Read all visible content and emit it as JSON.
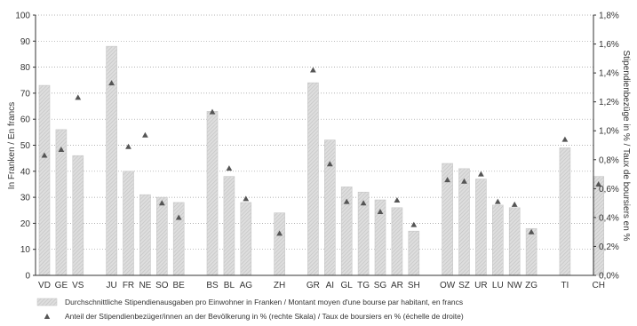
{
  "chart_data": {
    "type": "bar",
    "categories": [
      "VD",
      "GE",
      "VS",
      "JU",
      "FR",
      "NE",
      "SO",
      "BE",
      "BS",
      "BL",
      "AG",
      "ZH",
      "GR",
      "AI",
      "GL",
      "TG",
      "SG",
      "AR",
      "SH",
      "OW",
      "SZ",
      "UR",
      "LU",
      "NW",
      "ZG",
      "TI",
      "CH"
    ],
    "series": [
      {
        "name": "Durchschnittliche Stipendienausgaben pro Einwohner in Franken / Montant moyen d'une bourse par habitant, en francs",
        "type": "bar",
        "axis": "left",
        "values": [
          73,
          56,
          46,
          88,
          40,
          31,
          30,
          28,
          63,
          38,
          28,
          24,
          74,
          52,
          34,
          32,
          29,
          26,
          17,
          43,
          41,
          37,
          27,
          26,
          18,
          49,
          38
        ]
      },
      {
        "name": "Anteil der Stipendienbezüger/innen an der Bevölkerung in % (rechte Skala) / Taux de boursiers en % (échelle de droite)",
        "type": "scatter",
        "axis": "right",
        "values": [
          0.83,
          0.87,
          1.23,
          1.33,
          0.89,
          0.97,
          0.5,
          0.4,
          1.13,
          0.74,
          0.53,
          0.29,
          1.42,
          0.77,
          0.51,
          0.5,
          0.44,
          0.52,
          0.35,
          0.66,
          0.65,
          0.7,
          0.51,
          0.49,
          0.3,
          0.94,
          0.63
        ]
      }
    ],
    "ylabel": "In Franken / En francs",
    "ylabel_right": "Stipendienbezüge in % / Taux de boursiers en %",
    "ylim": [
      0,
      100
    ],
    "ylim_right": [
      0,
      1.8
    ],
    "yticks": [
      "0",
      "10",
      "20",
      "30",
      "40",
      "50",
      "60",
      "70",
      "80",
      "90",
      "100"
    ],
    "yticks_right": [
      "0,0%",
      "0,2%",
      "0,4%",
      "0,6%",
      "0,8%",
      "1,0%",
      "1,2%",
      "1,4%",
      "1,6%",
      "1,8%"
    ],
    "grid": true,
    "legend_position": "bottom",
    "colors": {
      "bar_fill": "#dcdcdc",
      "bar_stripe": "#c2c2c2",
      "bar_edge": "#c6c6c6",
      "marker": "#555555",
      "axis": "#333333",
      "grid": "#9a9a9a"
    }
  }
}
